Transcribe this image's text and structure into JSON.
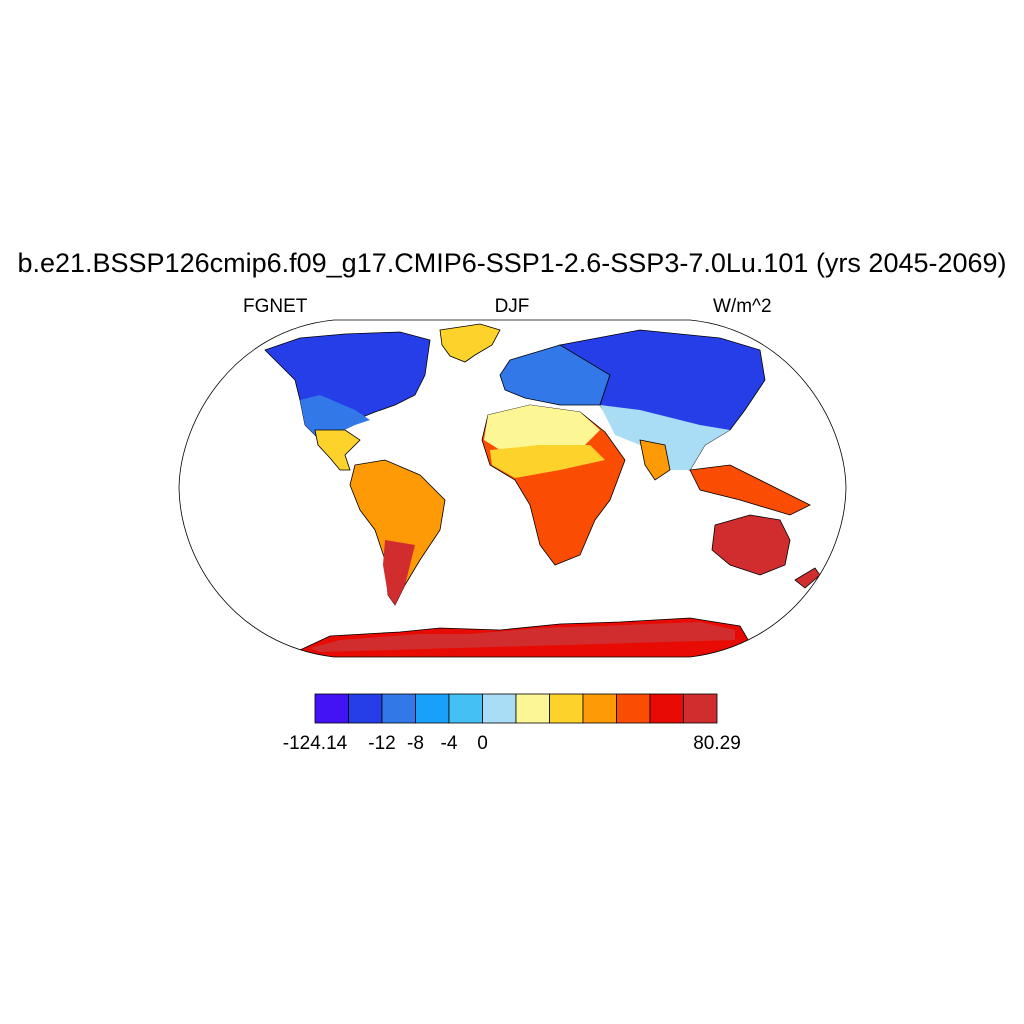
{
  "title": "b.e21.BSSP126cmip6.f09_g17.CMIP6-SSP1-2.6-SSP3-7.0Lu.101 (yrs 2045-2069)",
  "left_label": "FGNET",
  "center_label": "DJF",
  "right_label": "W/m^2",
  "colorbar": {
    "colors": [
      "#4313f5",
      "#263ee8",
      "#3278e8",
      "#18a0fa",
      "#45c0f5",
      "#a9dcf5",
      "#fdf694",
      "#fdd22b",
      "#fd9a06",
      "#fa4c03",
      "#e80b04",
      "#d22d2e"
    ],
    "labels": [
      {
        "text": "-124.14",
        "boundary": 0
      },
      {
        "text": "-12",
        "boundary": 2
      },
      {
        "text": "-8",
        "boundary": 3
      },
      {
        "text": "-4",
        "boundary": 4
      },
      {
        "text": "0",
        "boundary": 5
      },
      {
        "text": "80.29",
        "boundary": 12
      }
    ]
  }
}
